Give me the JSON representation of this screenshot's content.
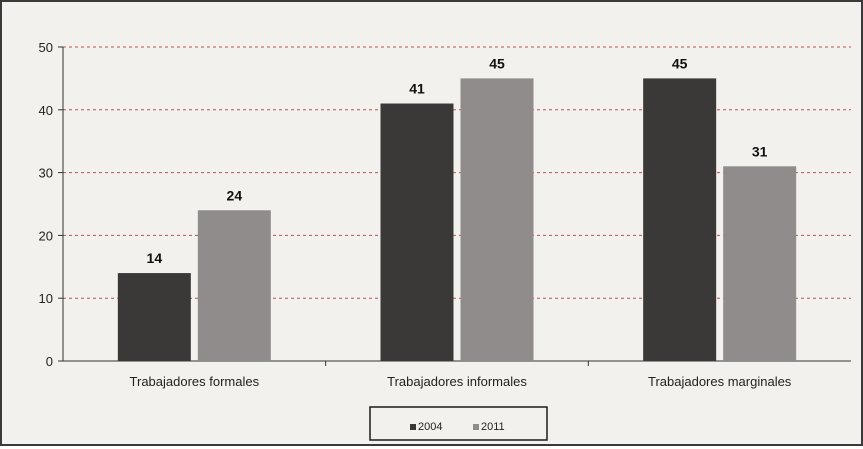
{
  "chart_data": {
    "type": "bar",
    "categories": [
      "Trabajadores formales",
      "Trabajadores informales",
      "Trabajadores marginales"
    ],
    "series": [
      {
        "name": "2004",
        "values": [
          14,
          41,
          45
        ],
        "color": "#3b3838"
      },
      {
        "name": "2011",
        "values": [
          24,
          45,
          31
        ],
        "color": "#8f8c8b"
      }
    ],
    "y_ticks": [
      "0",
      "10",
      "20",
      "30",
      "40",
      "50"
    ],
    "ylim": [
      0,
      50
    ],
    "grid": true,
    "grid_color": "#c0504d",
    "legend_position": "bottom",
    "title": "",
    "xlabel": "",
    "ylabel": ""
  }
}
